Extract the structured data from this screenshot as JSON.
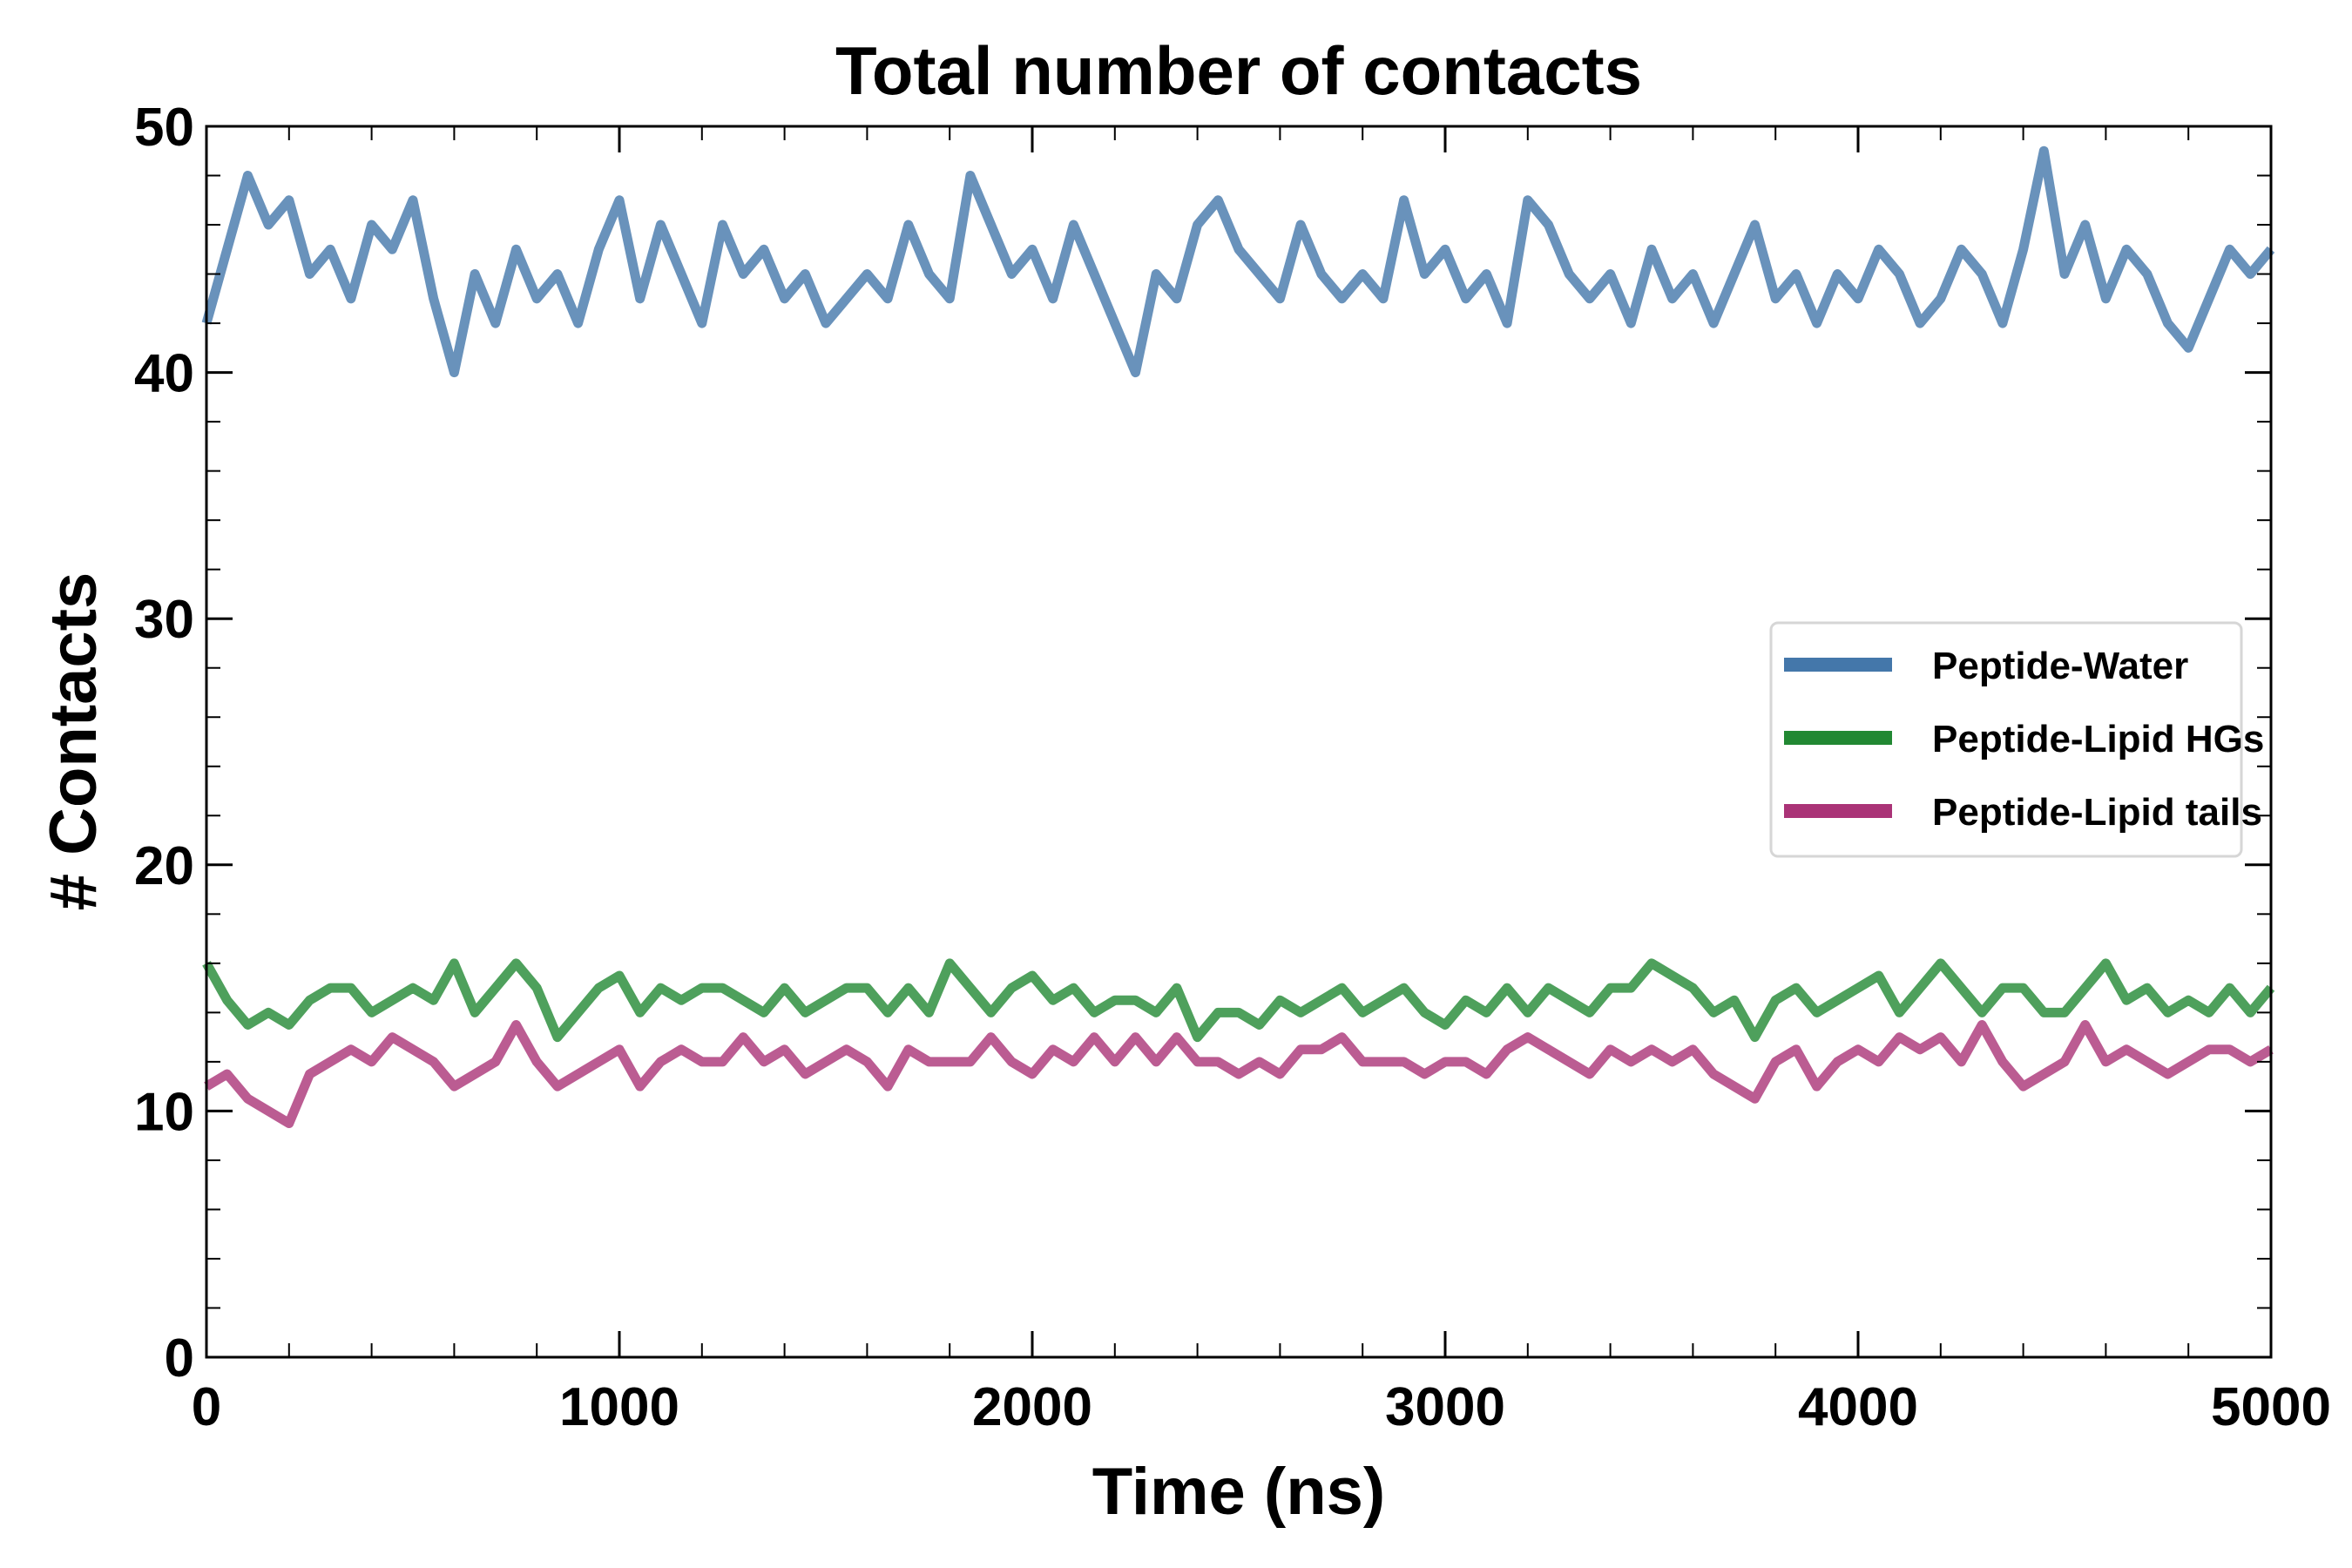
{
  "chart_data": {
    "type": "line",
    "title": "Total number of contacts",
    "xlabel": "Time (ns)",
    "ylabel": "# Contacts",
    "xlim": [
      0,
      5000
    ],
    "ylim": [
      0,
      50
    ],
    "xticks": [
      0,
      1000,
      2000,
      3000,
      4000,
      5000
    ],
    "yticks": [
      0,
      10,
      20,
      30,
      40,
      50
    ],
    "grid": false,
    "legend_position": "center-right",
    "x_step": 50,
    "series": [
      {
        "name": "Peptide-Water",
        "color": "#4477aa",
        "values": [
          42,
          45,
          48,
          46,
          47,
          44,
          45,
          43,
          46,
          45,
          47,
          43,
          40,
          44,
          42,
          45,
          43,
          44,
          42,
          45,
          47,
          43,
          46,
          44,
          42,
          46,
          44,
          45,
          43,
          44,
          42,
          43,
          44,
          43,
          46,
          44,
          43,
          48,
          46,
          44,
          45,
          43,
          46,
          44,
          42,
          40,
          44,
          43,
          46,
          47,
          45,
          44,
          43,
          46,
          44,
          43,
          44,
          43,
          47,
          44,
          45,
          43,
          44,
          42,
          47,
          46,
          44,
          43,
          44,
          42,
          45,
          43,
          44,
          42,
          44,
          46,
          43,
          44,
          42,
          44,
          43,
          45,
          44,
          42,
          43,
          45,
          44,
          42,
          45,
          49,
          44,
          46,
          43,
          45,
          44,
          42,
          41,
          43,
          45,
          44,
          45
        ]
      },
      {
        "name": "Peptide-Lipid HGs",
        "color": "#228833",
        "values": [
          16,
          14.5,
          13.5,
          14,
          13.5,
          14.5,
          15,
          15,
          14,
          14.5,
          15,
          14.5,
          16,
          14,
          15,
          16,
          15,
          13,
          14,
          15,
          15.5,
          14,
          15,
          14.5,
          15,
          15,
          14.5,
          14,
          15,
          14,
          14.5,
          15,
          15,
          14,
          15,
          14,
          16,
          15,
          14,
          15,
          15.5,
          14.5,
          15,
          14,
          14.5,
          14.5,
          14,
          15,
          13,
          14,
          14,
          13.5,
          14.5,
          14,
          14.5,
          15,
          14,
          14.5,
          15,
          14,
          13.5,
          14.5,
          14,
          15,
          14,
          15,
          14.5,
          14,
          15,
          15,
          16,
          15.5,
          15,
          14,
          14.5,
          13,
          14.5,
          15,
          14,
          14.5,
          15,
          15.5,
          14,
          15,
          16,
          15,
          14,
          15,
          15,
          14,
          14,
          15,
          16,
          14.5,
          15,
          14,
          14.5,
          14,
          15,
          14,
          15
        ]
      },
      {
        "name": "Peptide-Lipid tails",
        "color": "#aa3377",
        "values": [
          11,
          11.5,
          10.5,
          10,
          9.5,
          11.5,
          12,
          12.5,
          12,
          13,
          12.5,
          12,
          11,
          11.5,
          12,
          13.5,
          12,
          11,
          11.5,
          12,
          12.5,
          11,
          12,
          12.5,
          12,
          12,
          13,
          12,
          12.5,
          11.5,
          12,
          12.5,
          12,
          11,
          12.5,
          12,
          12,
          12,
          13,
          12,
          11.5,
          12.5,
          12,
          13,
          12,
          13,
          12,
          13,
          12,
          12,
          11.5,
          12,
          11.5,
          12.5,
          12.5,
          13,
          12,
          12,
          12,
          11.5,
          12,
          12,
          11.5,
          12.5,
          13,
          12.5,
          12,
          11.5,
          12.5,
          12,
          12.5,
          12,
          12.5,
          11.5,
          11,
          10.5,
          12,
          12.5,
          11,
          12,
          12.5,
          12,
          13,
          12.5,
          13,
          12,
          13.5,
          12,
          11,
          11.5,
          12,
          13.5,
          12,
          12.5,
          12,
          11.5,
          12,
          12.5,
          12.5,
          12,
          12.5
        ]
      }
    ]
  }
}
